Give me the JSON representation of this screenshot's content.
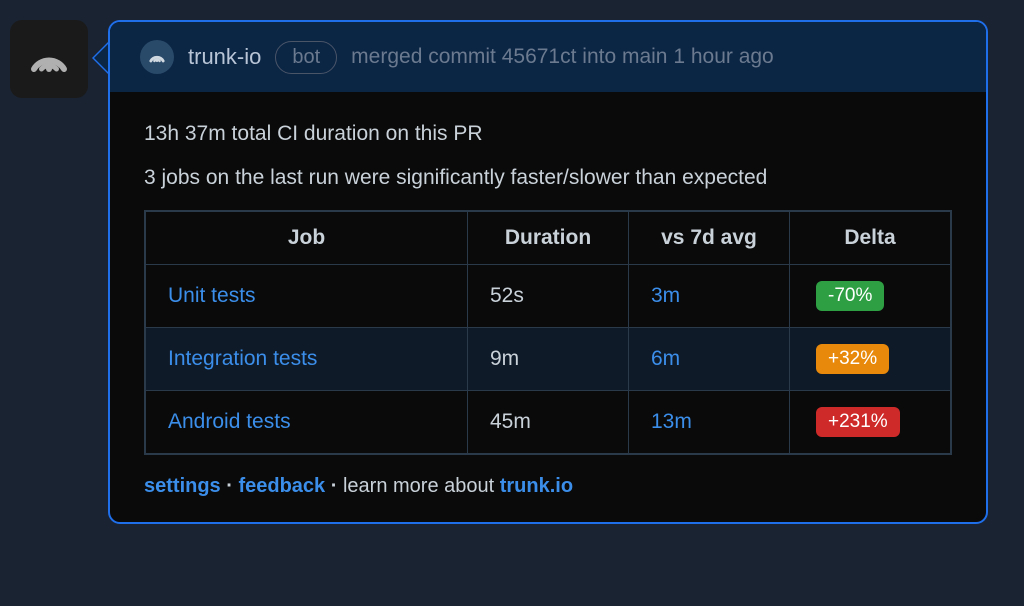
{
  "header": {
    "bot_name": "trunk-io",
    "bot_badge": "bot",
    "action_text": "merged commit 45671ct into main 1 hour ago"
  },
  "body": {
    "total_duration_line": "13h 37m total CI duration on this PR",
    "anomaly_line": "3 jobs on the last run were significantly faster/slower than expected"
  },
  "table": {
    "columns": {
      "job": "Job",
      "duration": "Duration",
      "vs_avg": "vs 7d avg",
      "delta": "Delta"
    },
    "rows": [
      {
        "job": "Unit tests",
        "duration": "52s",
        "vs_avg": "3m",
        "delta": "-70%",
        "delta_color": "#2ea043"
      },
      {
        "job": "Integration tests",
        "duration": "9m",
        "vs_avg": "6m",
        "delta": "+32%",
        "delta_color": "#e8890c"
      },
      {
        "job": "Android tests",
        "duration": "45m",
        "vs_avg": "13m",
        "delta": "+231%",
        "delta_color": "#cf2a2a"
      }
    ]
  },
  "footer": {
    "settings": "settings",
    "feedback": "feedback",
    "learn_prefix": "learn more about ",
    "learn_link": "trunk.io",
    "separator": " · "
  },
  "colors": {
    "link": "#3b8eea",
    "border_accent": "#1f6feb",
    "header_bg": "#0b2545",
    "body_bg": "#0a0a0a",
    "text": "#c9d1d9",
    "muted": "#6b7a8f"
  }
}
